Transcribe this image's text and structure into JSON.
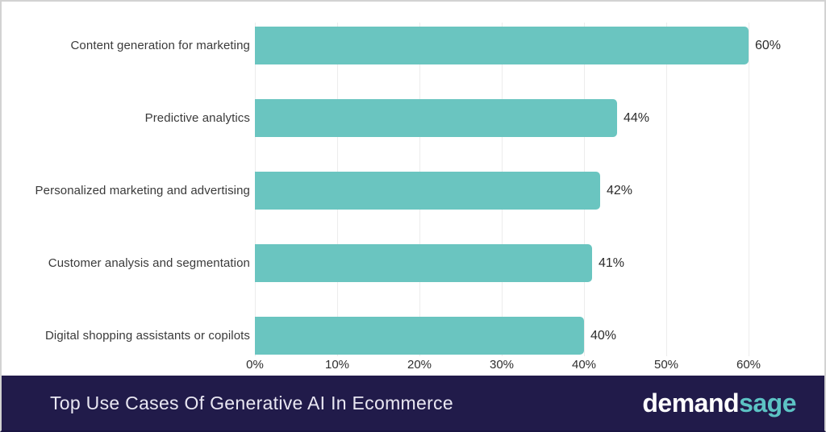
{
  "chart_data": {
    "type": "bar",
    "orientation": "horizontal",
    "categories": [
      "Content generation for marketing",
      "Predictive analytics",
      "Personalized marketing and advertising",
      "Customer analysis and segmentation",
      "Digital shopping assistants or copilots"
    ],
    "values": [
      60,
      44,
      42,
      41,
      40
    ],
    "value_labels": [
      "60%",
      "44%",
      "42%",
      "41%",
      "40%"
    ],
    "xlabel": "",
    "ylabel": "",
    "x_tick_labels": [
      "0%",
      "10%",
      "20%",
      "30%",
      "40%",
      "50%",
      "60%"
    ],
    "x_tick_values": [
      0,
      10,
      20,
      30,
      40,
      50,
      60
    ],
    "xlim": [
      0,
      63
    ],
    "grid": true,
    "legend": false,
    "bar_color": "#6ac5c0",
    "gridline_color": "#ececec",
    "title": "Top Use Cases Of Generative AI In Ecommerce"
  },
  "banner": {
    "title": "Top Use Cases Of Generative AI In Ecommerce",
    "background_color": "#211b4a",
    "logo_part1": "demand",
    "logo_part2": "sage",
    "logo_part2_color": "#5cc3c4"
  }
}
